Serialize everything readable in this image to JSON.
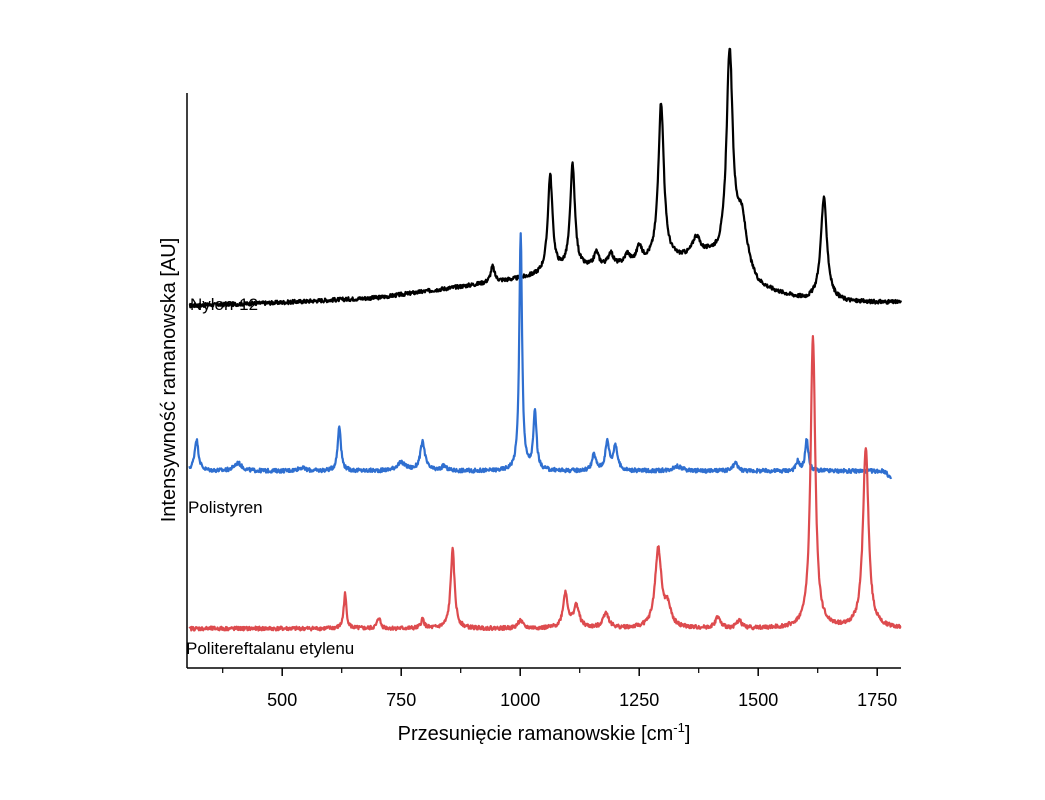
{
  "chart_data": {
    "type": "line",
    "title": "",
    "xlabel": {
      "main": "Przesunięcie ramanowskie [cm",
      "sup": "-1",
      "close": "]"
    },
    "ylabel": "Intensywność ramanowska [AU]",
    "xlim": [
      300,
      1800
    ],
    "x_ticks": [
      500,
      750,
      1000,
      1250,
      1500,
      1750
    ],
    "x_minor_ticks": [
      375,
      625,
      875,
      1125,
      1375,
      1625
    ],
    "y_ticks_shown": false,
    "grid": false,
    "legend": "none",
    "series": [
      {
        "name": "Nylon-12",
        "color": "#000000",
        "offset": 2.05,
        "x_range": [
          305,
          1800
        ],
        "baseline": [
          [
            305,
            0.0
          ],
          [
            500,
            0.02
          ],
          [
            700,
            0.05
          ],
          [
            900,
            0.13
          ],
          [
            1000,
            0.17
          ],
          [
            1100,
            0.22
          ],
          [
            1200,
            0.25
          ],
          [
            1300,
            0.28
          ],
          [
            1400,
            0.3
          ],
          [
            1500,
            0.1
          ],
          [
            1600,
            0.03
          ],
          [
            1700,
            0.02
          ],
          [
            1800,
            0.02
          ]
        ],
        "peaks": [
          {
            "x": 942,
            "h": 0.1,
            "w": 5
          },
          {
            "x": 1063,
            "h": 0.62,
            "w": 6
          },
          {
            "x": 1110,
            "h": 0.66,
            "w": 6
          },
          {
            "x": 1160,
            "h": 0.09,
            "w": 6
          },
          {
            "x": 1190,
            "h": 0.08,
            "w": 6
          },
          {
            "x": 1225,
            "h": 0.06,
            "w": 6
          },
          {
            "x": 1250,
            "h": 0.1,
            "w": 6
          },
          {
            "x": 1296,
            "h": 1.0,
            "w": 7
          },
          {
            "x": 1370,
            "h": 0.12,
            "w": 10
          },
          {
            "x": 1440,
            "h": 1.33,
            "w": 8
          },
          {
            "x": 1465,
            "h": 0.35,
            "w": 14
          },
          {
            "x": 1638,
            "h": 0.65,
            "w": 8
          }
        ]
      },
      {
        "name": "Polistyren",
        "color": "#2f6fd0",
        "offset": 1.0,
        "x_range": [
          305,
          1780
        ],
        "baseline": [
          [
            305,
            0.0
          ],
          [
            1780,
            0.0
          ]
        ],
        "end_drop": 0.05,
        "peaks": [
          {
            "x": 320,
            "h": 0.2,
            "w": 5
          },
          {
            "x": 407,
            "h": 0.05,
            "w": 10
          },
          {
            "x": 540,
            "h": 0.02,
            "w": 10
          },
          {
            "x": 620,
            "h": 0.29,
            "w": 4
          },
          {
            "x": 750,
            "h": 0.05,
            "w": 12
          },
          {
            "x": 795,
            "h": 0.18,
            "w": 6
          },
          {
            "x": 840,
            "h": 0.03,
            "w": 6
          },
          {
            "x": 1001,
            "h": 1.5,
            "w": 3.5
          },
          {
            "x": 1031,
            "h": 0.37,
            "w": 4
          },
          {
            "x": 1155,
            "h": 0.1,
            "w": 5
          },
          {
            "x": 1183,
            "h": 0.18,
            "w": 5
          },
          {
            "x": 1200,
            "h": 0.16,
            "w": 5
          },
          {
            "x": 1330,
            "h": 0.03,
            "w": 12
          },
          {
            "x": 1452,
            "h": 0.05,
            "w": 6
          },
          {
            "x": 1583,
            "h": 0.06,
            "w": 4
          },
          {
            "x": 1602,
            "h": 0.2,
            "w": 4
          }
        ]
      },
      {
        "name": "Politereftalanu etylenu",
        "color": "#dd4b4e",
        "offset": 0.0,
        "x_range": [
          305,
          1800
        ],
        "baseline": [
          [
            305,
            0.0
          ],
          [
            1800,
            0.0
          ]
        ],
        "peaks": [
          {
            "x": 632,
            "h": 0.22,
            "w": 3.5
          },
          {
            "x": 703,
            "h": 0.07,
            "w": 4
          },
          {
            "x": 795,
            "h": 0.06,
            "w": 4
          },
          {
            "x": 858,
            "h": 0.5,
            "w": 5
          },
          {
            "x": 1000,
            "h": 0.05,
            "w": 6
          },
          {
            "x": 1095,
            "h": 0.22,
            "w": 6
          },
          {
            "x": 1118,
            "h": 0.14,
            "w": 7
          },
          {
            "x": 1180,
            "h": 0.1,
            "w": 7
          },
          {
            "x": 1290,
            "h": 0.5,
            "w": 8
          },
          {
            "x": 1310,
            "h": 0.12,
            "w": 8
          },
          {
            "x": 1415,
            "h": 0.07,
            "w": 6
          },
          {
            "x": 1460,
            "h": 0.05,
            "w": 6
          },
          {
            "x": 1615,
            "h": 1.85,
            "w": 6
          },
          {
            "x": 1726,
            "h": 1.15,
            "w": 7
          }
        ]
      }
    ]
  }
}
